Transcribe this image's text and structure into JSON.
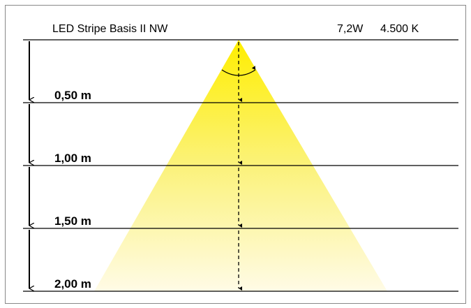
{
  "header": {
    "title": "LED Stripe Basis II NW",
    "power": "7,2W",
    "color_temperature": "4.500 K"
  },
  "distances": [
    "0,50 m",
    "1,00 m",
    "1,50 m",
    "2,00 m"
  ]
}
